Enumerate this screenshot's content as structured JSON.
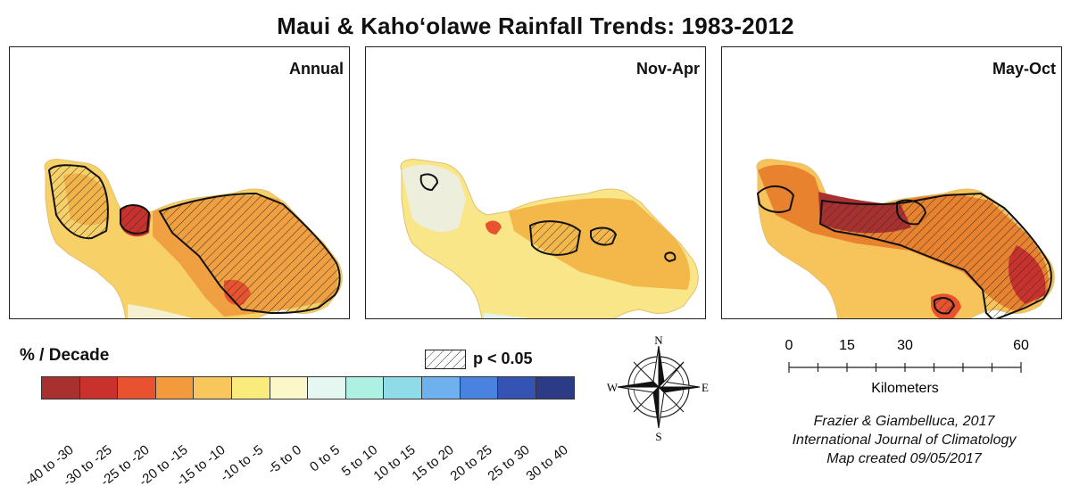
{
  "title": "Maui & Kaho‘olawe Rainfall Trends: 1983-2012",
  "panels": [
    {
      "label": "Annual"
    },
    {
      "label": "Nov-Apr"
    },
    {
      "label": "May-Oct"
    }
  ],
  "legend": {
    "title": "% / Decade",
    "classes": [
      {
        "label": "-40 to -30",
        "color": "#a8302e"
      },
      {
        "label": "-30 to -25",
        "color": "#c8312c"
      },
      {
        "label": "-25 to -20",
        "color": "#e8522e"
      },
      {
        "label": "-20 to -15",
        "color": "#f39a3c"
      },
      {
        "label": "-15 to -10",
        "color": "#f8c65a"
      },
      {
        "label": "-10 to -5",
        "color": "#f9ec7c"
      },
      {
        "label": "-5 to 0",
        "color": "#fbf7c8"
      },
      {
        "label": "0 to 5",
        "color": "#e4f7f1"
      },
      {
        "label": "5 to 10",
        "color": "#aef0e2"
      },
      {
        "label": "10 to 15",
        "color": "#8fdbe8"
      },
      {
        "label": "15 to 20",
        "color": "#6fb0ee"
      },
      {
        "label": "20 to 25",
        "color": "#4a82e0"
      },
      {
        "label": "25 to 30",
        "color": "#3553b2"
      },
      {
        "label": "30 to 40",
        "color": "#2b3b86"
      }
    ],
    "significance": "p < 0.05"
  },
  "compass": {
    "n": "N",
    "s": "S",
    "e": "E",
    "w": "W"
  },
  "scale_bar": {
    "ticks": [
      "0",
      "15",
      "30",
      "60"
    ],
    "unit": "Kilometers"
  },
  "credit": {
    "line1": "Frazier & Giambelluca, 2017",
    "line2": "International Journal of Climatology",
    "line3": "Map created 09/05/2017"
  }
}
